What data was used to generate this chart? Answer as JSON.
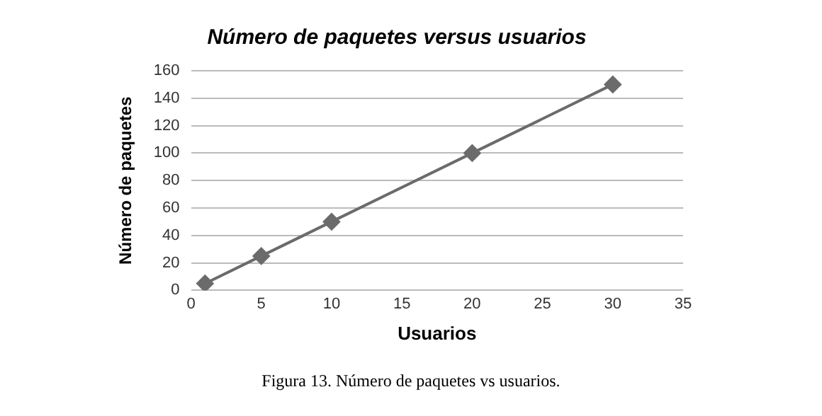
{
  "chart_data": {
    "type": "line",
    "title": "Número de paquetes versus usuarios",
    "xlabel": "Usuarios",
    "ylabel": "Número de paquetes",
    "x": [
      1,
      5,
      10,
      20,
      30
    ],
    "series": [
      {
        "color": "#6b6b6b",
        "values": [
          5,
          25,
          50,
          100,
          150
        ]
      }
    ],
    "xlim": [
      0,
      35
    ],
    "xticks": [
      0,
      5,
      10,
      15,
      20,
      25,
      30,
      35
    ],
    "ylim": [
      0,
      160
    ],
    "yticks": [
      0,
      20,
      40,
      60,
      80,
      100,
      120,
      140,
      160
    ],
    "grid": "y",
    "legend": false,
    "marker": "diamond",
    "line_style": "solid",
    "annotations": [
      "Figura 13. Número de paquetes vs usuarios."
    ]
  }
}
